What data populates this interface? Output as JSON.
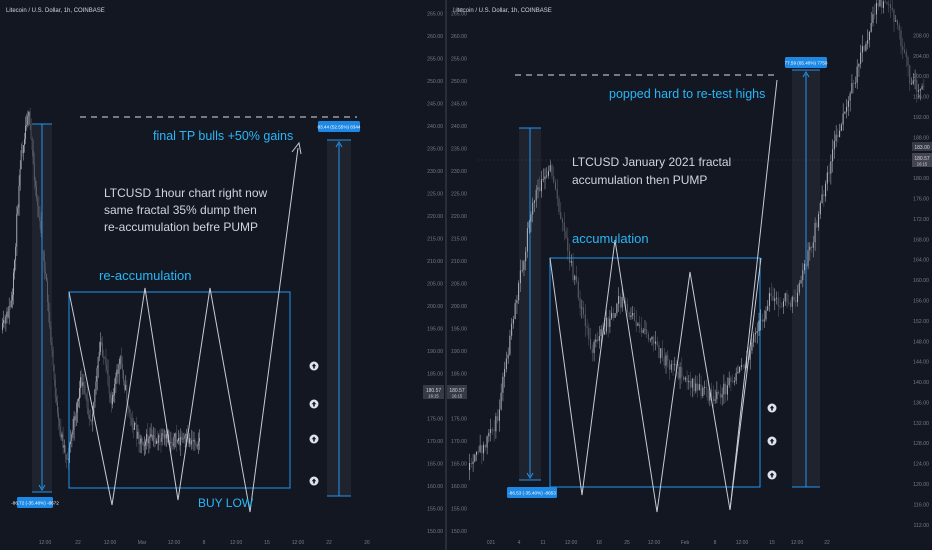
{
  "colors": {
    "background": "#131722",
    "candle_up": "#b2b5be",
    "candle_down": "#5d606b",
    "box": "#2196f3",
    "annotation_text": "#29b6f6",
    "note_text": "#d1d4dc",
    "badge": "#1e88e5",
    "dashed": "#b2b5be",
    "axis_text": "#787b86",
    "price_tag": "#363a45"
  },
  "left_panel": {
    "symbol": "Litecoin / U.S. Dollar, 1h, COINBASE",
    "texts": {
      "tp_label": "final TP bulls +50% gains",
      "note_line1": "LTCUSD 1hour chart right now",
      "note_line2": "same fractal 35% dump then",
      "note_line3": "re-accumulation befre PUMP",
      "reaccumulation": "re-accumulation",
      "buy_low": "BUY LOW",
      "measure_down": "-86.72 (-35.48%) -8672",
      "measure_up": "83.44 (52.55%) 8344"
    },
    "x_ticks": [
      "12:00",
      "22",
      "12:00",
      "Mar",
      "12:00",
      "8",
      "12:00",
      "15",
      "12:00",
      "22",
      "26"
    ],
    "arrow_icon": "arrow-up-circle-icon"
  },
  "right_panel": {
    "symbol": "Litecoin / U.S. Dollar, 1h, COINBASE",
    "currency": "USD",
    "texts": {
      "popped": "popped hard to re-test highs",
      "note_line1": "LTCUSD January 2021 fractal",
      "note_line2": "accumulation then PUMP",
      "accumulation": "accumulation",
      "measure_down": "-86.53 (-35.40%) -8653",
      "measure_up": "77.59 (65.40%) 7759"
    },
    "x_ticks": [
      "021",
      "4",
      "11",
      "12:00",
      "18",
      "25",
      "12:00",
      "Feb",
      "8",
      "12:00",
      "15",
      "12:00",
      "22"
    ],
    "arrow_icon": "arrow-up-circle-icon"
  },
  "chart_data": {
    "type": "candlestick",
    "y_axis_labels": [
      "150.00",
      "155.00",
      "160.00",
      "165.00",
      "170.00",
      "175.00",
      "180.00",
      "185.00",
      "190.00",
      "195.00",
      "200.00",
      "205.00",
      "210.00",
      "215.00",
      "220.00",
      "225.00",
      "230.00",
      "235.00",
      "240.00",
      "245.00",
      "250.00",
      "255.00",
      "260.00",
      "265.00"
    ],
    "right_y_axis_labels": [
      "112.00",
      "116.00",
      "120.00",
      "124.00",
      "128.00",
      "132.00",
      "136.00",
      "140.00",
      "144.00",
      "148.00",
      "152.00",
      "156.00",
      "160.00",
      "164.00",
      "168.00",
      "172.00",
      "176.00",
      "180.00",
      "184.00",
      "188.00",
      "192.00",
      "196.00",
      "200.00",
      "204.00",
      "208.00"
    ],
    "last_price": "180.57",
    "last_price_sub": "16:15",
    "right_price_tag_top": "183.00",
    "left_ylim": [
      148,
      268
    ],
    "right_ylim": [
      110,
      212
    ]
  }
}
